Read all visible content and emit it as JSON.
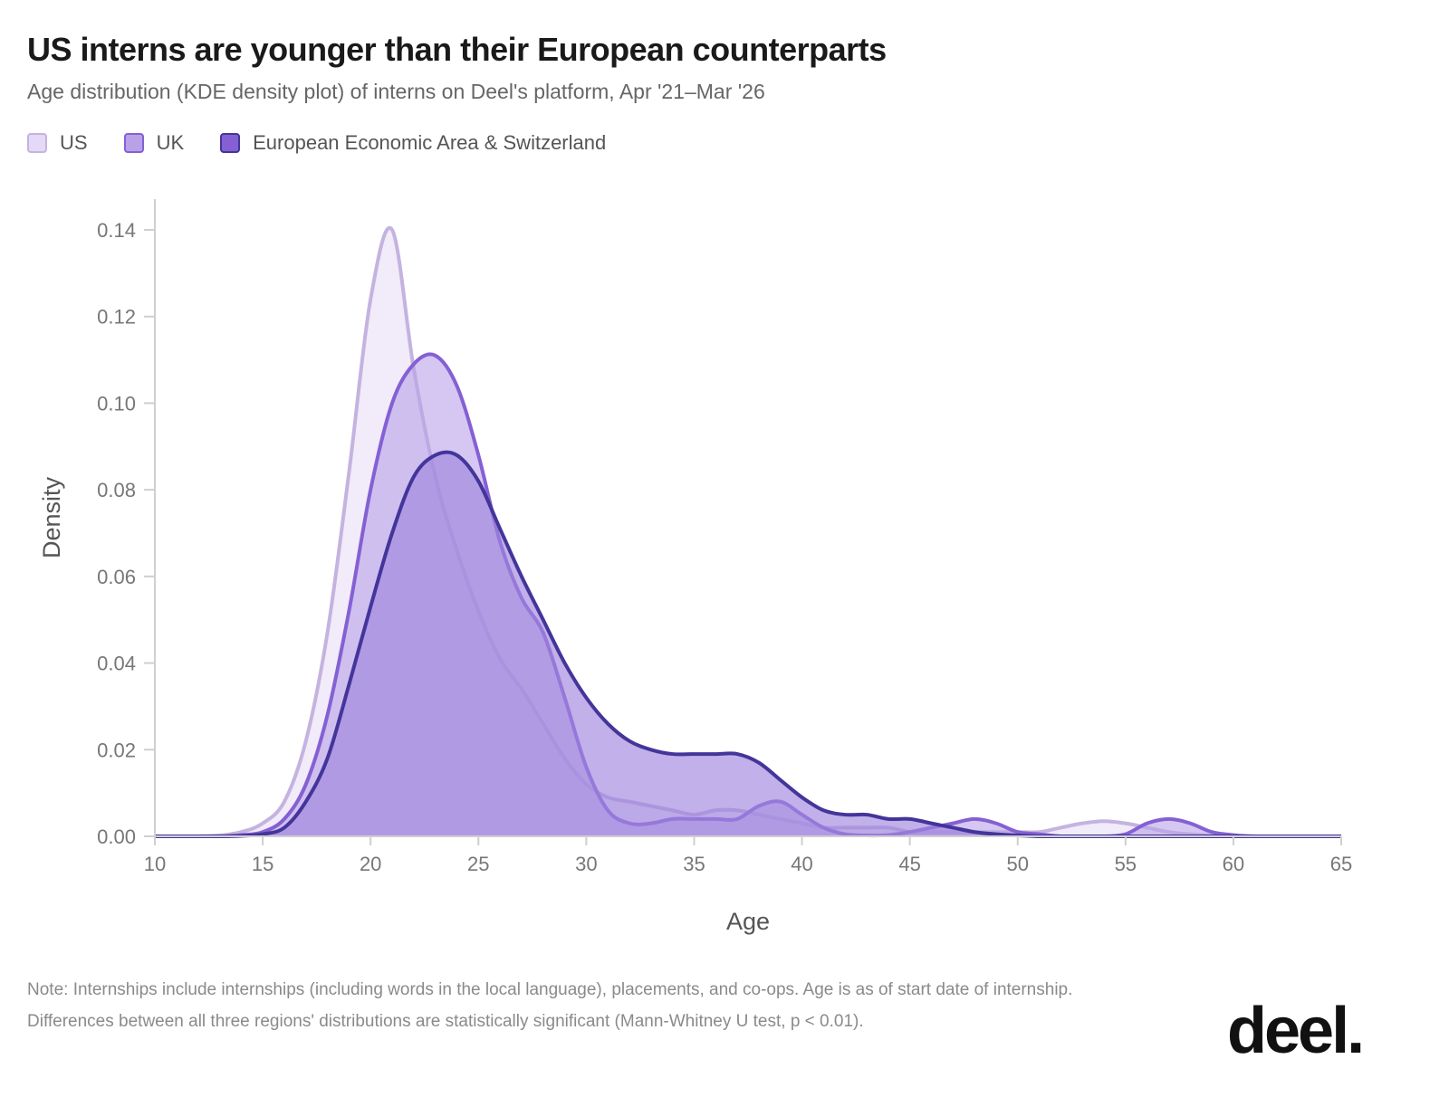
{
  "title": "US interns are younger than their European counterparts",
  "subtitle": "Age distribution (KDE density plot) of interns on Deel's platform, Apr '21–Mar '26",
  "legend": [
    {
      "label": "US",
      "fill": "#e4d9f6",
      "stroke": "#c4b3df"
    },
    {
      "label": "UK",
      "fill": "#b9a1e8",
      "stroke": "#8560d4"
    },
    {
      "label": "European Economic Area & Switzerland",
      "fill": "#8560d4",
      "stroke": "#43359a"
    }
  ],
  "notes": [
    "Note: Internships include internships (including words in the local language), placements, and co-ops. Age is as of start date of internship.",
    "Differences between all three regions' distributions are statistically significant (Mann-Whitney U test, p < 0.01)."
  ],
  "logo": "deel.",
  "chart_data": {
    "type": "area",
    "title": "US interns are younger than their European counterparts",
    "xlabel": "Age",
    "ylabel": "Density",
    "xlim": [
      10,
      65
    ],
    "ylim": [
      0,
      0.14
    ],
    "xticks": [
      10,
      15,
      20,
      25,
      30,
      35,
      40,
      45,
      50,
      55,
      60,
      65
    ],
    "yticks": [
      "0.00",
      "0.02",
      "0.04",
      "0.06",
      "0.08",
      "0.10",
      "0.12",
      "0.14"
    ],
    "grid": false,
    "legend_position": "top-left",
    "x": [
      10,
      11,
      12,
      13,
      14,
      15,
      16,
      17,
      18,
      19,
      20,
      21,
      22,
      23,
      24,
      25,
      26,
      27,
      28,
      29,
      30,
      31,
      32,
      33,
      34,
      35,
      36,
      37,
      38,
      39,
      40,
      41,
      42,
      43,
      44,
      45,
      46,
      47,
      48,
      49,
      50,
      51,
      52,
      53,
      54,
      55,
      56,
      57,
      58,
      59,
      60,
      61,
      62,
      63,
      64,
      65
    ],
    "series": [
      {
        "name": "US",
        "fill": "#ece4f8",
        "stroke": "#c4b3df",
        "values": [
          0,
          0,
          0,
          0.0002,
          0.001,
          0.003,
          0.008,
          0.022,
          0.047,
          0.084,
          0.124,
          0.14,
          0.108,
          0.083,
          0.066,
          0.052,
          0.041,
          0.034,
          0.026,
          0.018,
          0.012,
          0.009,
          0.008,
          0.007,
          0.006,
          0.005,
          0.006,
          0.006,
          0.005,
          0.004,
          0.003,
          0.002,
          0.002,
          0.002,
          0.002,
          0.001,
          0.001,
          0.001,
          0.001,
          0.001,
          0.001,
          0.001,
          0.002,
          0.003,
          0.0035,
          0.003,
          0.002,
          0.001,
          0.0005,
          0.0002,
          0,
          0,
          0,
          0,
          0,
          0
        ]
      },
      {
        "name": "UK",
        "fill": "#b9a1e8",
        "stroke": "#8560d4",
        "values": [
          0,
          0,
          0,
          0,
          0.0003,
          0.001,
          0.004,
          0.012,
          0.028,
          0.052,
          0.08,
          0.1,
          0.109,
          0.111,
          0.104,
          0.088,
          0.068,
          0.055,
          0.047,
          0.032,
          0.016,
          0.006,
          0.003,
          0.003,
          0.004,
          0.004,
          0.004,
          0.004,
          0.007,
          0.008,
          0.005,
          0.002,
          0.0005,
          0.0002,
          0.0003,
          0.001,
          0.002,
          0.003,
          0.004,
          0.003,
          0.001,
          0.0005,
          0,
          0,
          0,
          0.0005,
          0.003,
          0.004,
          0.003,
          0.001,
          0.0003,
          0,
          0,
          0,
          0,
          0
        ]
      },
      {
        "name": "European Economic Area & Switzerland",
        "fill": "#9f85dd",
        "stroke": "#43359a",
        "values": [
          0,
          0,
          0,
          0,
          0.0001,
          0.0005,
          0.002,
          0.008,
          0.018,
          0.035,
          0.053,
          0.07,
          0.083,
          0.088,
          0.088,
          0.082,
          0.071,
          0.06,
          0.05,
          0.04,
          0.032,
          0.026,
          0.022,
          0.02,
          0.019,
          0.019,
          0.019,
          0.019,
          0.017,
          0.013,
          0.009,
          0.006,
          0.005,
          0.005,
          0.004,
          0.004,
          0.003,
          0.002,
          0.001,
          0.0005,
          0.0002,
          0,
          0,
          0,
          0,
          0,
          0,
          0,
          0,
          0,
          0,
          0,
          0,
          0,
          0,
          0
        ]
      }
    ]
  }
}
